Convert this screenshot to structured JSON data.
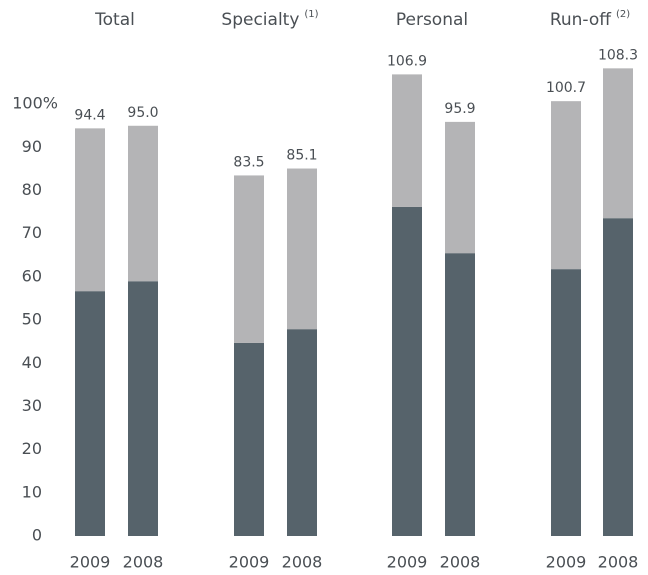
{
  "chart_data": {
    "type": "stacked_bar",
    "ylim": [
      0,
      110
    ],
    "yticks": [
      0,
      10,
      20,
      30,
      40,
      50,
      60,
      70,
      80,
      90,
      {
        "value": 100,
        "label": "100%"
      }
    ],
    "panels": [
      {
        "title": "Total",
        "categories": [
          "2009",
          "2008"
        ],
        "series": [
          {
            "color": "#56636b",
            "values": [
              56.7,
              59.0
            ]
          },
          {
            "color": "#b4b4b6",
            "values": [
              37.7,
              36.0
            ]
          }
        ],
        "totals": [
          94.4,
          95.0
        ],
        "value_labels": [
          "94.4",
          "95.0"
        ]
      },
      {
        "title": "Specialty",
        "note": "(1)",
        "categories": [
          "2009",
          "2008"
        ],
        "series": [
          {
            "color": "#56636b",
            "values": [
              44.7,
              47.9
            ]
          },
          {
            "color": "#b4b4b6",
            "values": [
              38.8,
              37.2
            ]
          }
        ],
        "totals": [
          83.5,
          85.1
        ],
        "value_labels": [
          "83.5",
          "85.1"
        ]
      },
      {
        "title": "Personal",
        "categories": [
          "2009",
          "2008"
        ],
        "series": [
          {
            "color": "#56636b",
            "values": [
              76.2,
              65.5
            ]
          },
          {
            "color": "#b4b4b6",
            "values": [
              30.7,
              30.4
            ]
          }
        ],
        "totals": [
          106.9,
          95.9
        ],
        "value_labels": [
          "106.9",
          "95.9"
        ]
      },
      {
        "title": "Run-off",
        "note": "(2)",
        "categories": [
          "2009",
          "2008"
        ],
        "series": [
          {
            "color": "#56636b",
            "values": [
              61.8,
              73.6
            ]
          },
          {
            "color": "#b4b4b6",
            "values": [
              38.9,
              34.7
            ]
          }
        ],
        "totals": [
          100.7,
          108.3
        ],
        "value_labels": [
          "100.7",
          "108.3"
        ]
      }
    ]
  }
}
